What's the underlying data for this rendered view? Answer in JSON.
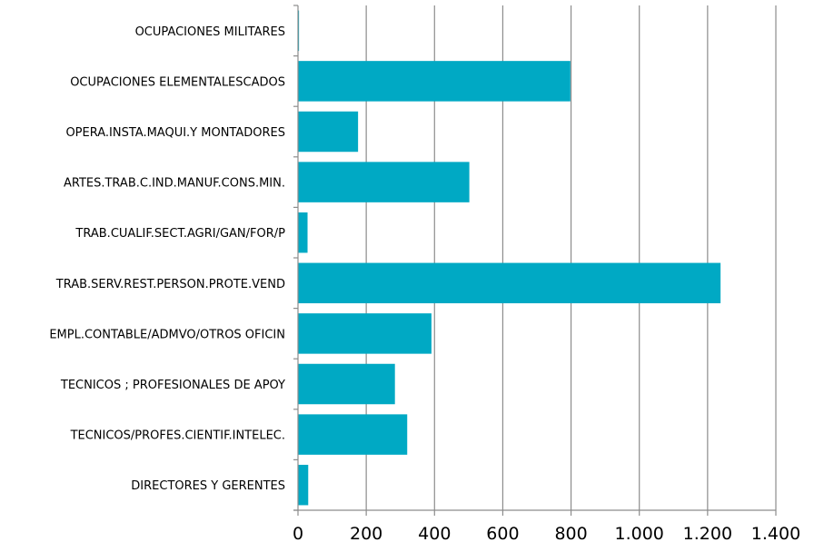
{
  "chart_data": {
    "type": "bar",
    "orientation": "horizontal",
    "categories": [
      "OCUPACIONES MILITARES",
      "OCUPACIONES ELEMENTALESCADOS",
      "OPERA.INSTA.MAQUI.Y MONTADORES",
      "ARTES.TRAB.C.IND.MANUF.CONS.MIN.",
      "TRAB.CUALIF.SECT.AGRI/GAN/FOR/P",
      "TRAB.SERV.REST.PERSON.PROTE.VEND",
      "EMPL.CONTABLE/ADMVO/OTROS OFICIN",
      "TECNICOS ; PROFESIONALES DE APOY",
      "TECNICOS/PROFES.CIENTIF.INTELEC.",
      "DIRECTORES Y GERENTES"
    ],
    "values": [
      3,
      798,
      176,
      502,
      28,
      1238,
      391,
      284,
      320,
      30
    ],
    "xlim": [
      0,
      1400
    ],
    "xticks": [
      0,
      200,
      400,
      600,
      800,
      1000,
      1200,
      1400
    ],
    "xtick_labels": [
      "0",
      "200",
      "400",
      "600",
      "800",
      "1.000",
      "1.200",
      "1.400"
    ],
    "grid": "vertical",
    "bar_color": "#00A9C4",
    "grid_color": "#8C8C8C",
    "title": "",
    "xlabel": "",
    "ylabel": ""
  }
}
